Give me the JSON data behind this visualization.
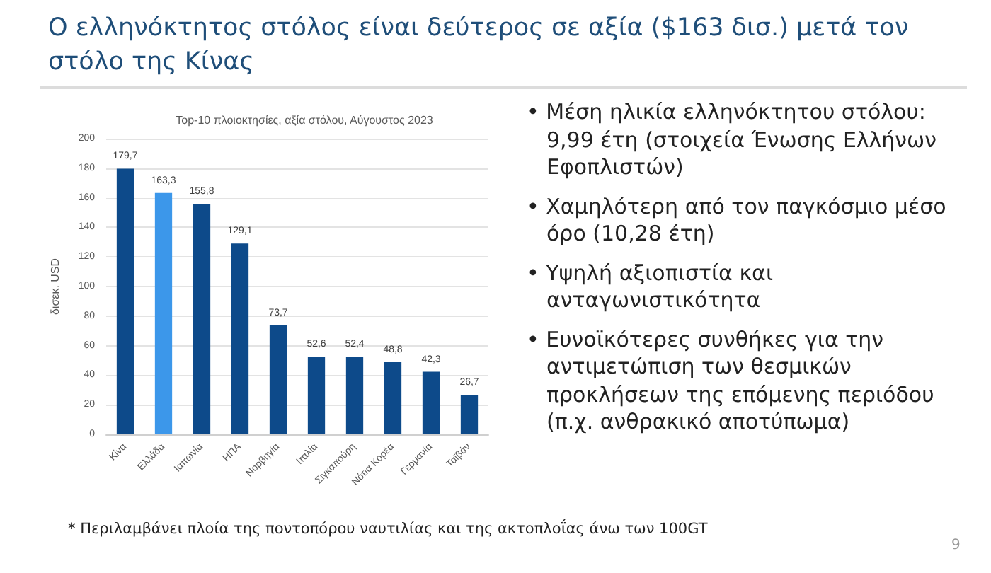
{
  "chart_data": {
    "type": "bar",
    "title": "Ο ελληνόκτητος στόλος είναι δεύτερος σε αξία ($163 δισ.) μετά τον στόλο της Κίνας",
    "subtitle": "Top-10 πλοιοκτησίες, αξία στόλου, Αύγουστος 2023",
    "ylabel": "δισεκ. USD",
    "categories": [
      "Κίνα",
      "Ελλάδα",
      "Ιαπωνία",
      "ΗΠΑ",
      "Νορβηγία",
      "Ιταλία",
      "Σιγκαπούρη",
      "Νότια Κορέα",
      "Γερμανία",
      "Ταϊβάν"
    ],
    "values": [
      179.7,
      163.3,
      155.8,
      129.1,
      73.7,
      52.6,
      52.4,
      48.8,
      42.3,
      26.7
    ],
    "value_labels": [
      "179,7",
      "163,3",
      "155,8",
      "129,1",
      "73,7",
      "52,6",
      "52,4",
      "48,8",
      "42,3",
      "26,7"
    ],
    "colors": [
      "#0d4a8a",
      "#3c97ea",
      "#0d4a8a",
      "#0d4a8a",
      "#0d4a8a",
      "#0d4a8a",
      "#0d4a8a",
      "#0d4a8a",
      "#0d4a8a",
      "#0d4a8a"
    ],
    "ylim": [
      0,
      200
    ],
    "yticks": [
      0,
      20,
      40,
      60,
      80,
      100,
      120,
      140,
      160,
      180,
      200
    ],
    "grid": "y",
    "annotations": [
      "• Μέση ηλικία ελληνόκτητου στόλου: 9,99 έτη (στοιχεία Ένωσης Ελλήνων Εφοπλιστών)",
      "• Χαμηλότερη από τον παγκόσμιο μέσο όρο (10,28 έτη)",
      "• Υψηλή αξιοπιστία και ανταγωνιστικότητα",
      "• Ευνοϊκότερες συνθήκες για την αντιμετώπιση των θεσμικών προκλήσεων της επόμενης περιόδου (π.χ. ανθρακικό αποτύπωμα)",
      "* Περιλαμβάνει πλοία της ποντοπόρου ναυτιλίας και της ακτοπλοΐας άνω των 100GT",
      "9"
    ]
  }
}
